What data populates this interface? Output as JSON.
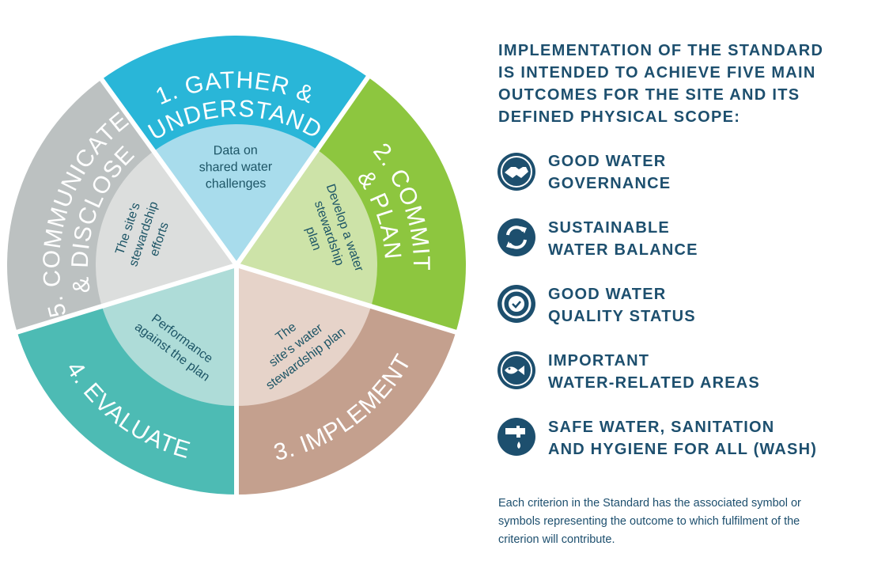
{
  "cycle": [
    {
      "label": [
        "1. GATHER &",
        "UNDERSTAND"
      ],
      "inner": [
        "Data on",
        "shared water",
        "challenges"
      ]
    },
    {
      "label": [
        "2. COMMIT",
        "& PLAN"
      ],
      "inner": [
        "Develop a water",
        "stewardship",
        "plan"
      ]
    },
    {
      "label": [
        "3. IMPLEMENT"
      ],
      "inner": [
        "The",
        "site's water",
        "stewardship plan"
      ]
    },
    {
      "label": [
        "4. EVALUATE"
      ],
      "inner": [
        "Performance",
        "against the plan"
      ]
    },
    {
      "label": [
        "5. COMMUNICATE",
        "& DISCLOSE"
      ],
      "inner": [
        "The site's",
        "stewardship",
        "efforts"
      ]
    }
  ],
  "heading": [
    "IMPLEMENTATION OF THE STANDARD",
    "IS INTENDED TO ACHIEVE FIVE MAIN",
    "OUTCOMES FOR THE SITE AND ITS",
    "DEFINED PHYSICAL SCOPE:"
  ],
  "outcomes": [
    [
      "GOOD WATER",
      "GOVERNANCE"
    ],
    [
      "SUSTAINABLE",
      "WATER BALANCE"
    ],
    [
      "GOOD WATER",
      "QUALITY STATUS"
    ],
    [
      "IMPORTANT",
      "WATER-RELATED AREAS"
    ],
    [
      "SAFE WATER, SANITATION",
      "AND HYGIENE FOR ALL (WASH)"
    ]
  ],
  "footnote": [
    "Each criterion in the Standard has the associated symbol or",
    "symbols representing the outcome to which fulfilment of the",
    "criterion will contribute."
  ]
}
